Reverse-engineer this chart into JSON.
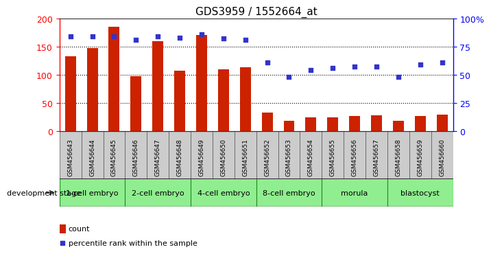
{
  "title": "GDS3959 / 1552664_at",
  "categories": [
    "GSM456643",
    "GSM456644",
    "GSM456645",
    "GSM456646",
    "GSM456647",
    "GSM456648",
    "GSM456649",
    "GSM456650",
    "GSM456651",
    "GSM456652",
    "GSM456653",
    "GSM456654",
    "GSM456655",
    "GSM456656",
    "GSM456657",
    "GSM456658",
    "GSM456659",
    "GSM456660"
  ],
  "counts": [
    133,
    147,
    185,
    98,
    160,
    107,
    170,
    110,
    113,
    33,
    18,
    25,
    25,
    27,
    28,
    19,
    27,
    30
  ],
  "percentiles": [
    84,
    84,
    84,
    81,
    84,
    83,
    86,
    82,
    81,
    61,
    48,
    54,
    56,
    57,
    57,
    48,
    59,
    61
  ],
  "stage_groups": [
    {
      "label": "1-cell embryo",
      "start": 0,
      "end": 3
    },
    {
      "label": "2-cell embryo",
      "start": 3,
      "end": 6
    },
    {
      "label": "4-cell embryo",
      "start": 6,
      "end": 9
    },
    {
      "label": "8-cell embryo",
      "start": 9,
      "end": 12
    },
    {
      "label": "morula",
      "start": 12,
      "end": 15
    },
    {
      "label": "blastocyst",
      "start": 15,
      "end": 18
    }
  ],
  "bar_color": "#CC2200",
  "dot_color": "#3333CC",
  "ylim_left": [
    0,
    200
  ],
  "ylim_right": [
    0,
    100
  ],
  "yticks_left": [
    0,
    50,
    100,
    150,
    200
  ],
  "yticks_right": [
    0,
    25,
    50,
    75,
    100
  ],
  "yticklabels_right": [
    "0",
    "25",
    "50",
    "75",
    "100%"
  ],
  "grid_values": [
    50,
    100,
    150
  ],
  "xlabel": "development stage",
  "legend_count_label": "count",
  "legend_percentile_label": "percentile rank within the sample",
  "plot_bg_color": "#ffffff",
  "tick_bg_color": "#cccccc",
  "stage_bg_color": "#90EE90",
  "stage_edge_color": "#228B22",
  "tick_edge_color": "#555555"
}
